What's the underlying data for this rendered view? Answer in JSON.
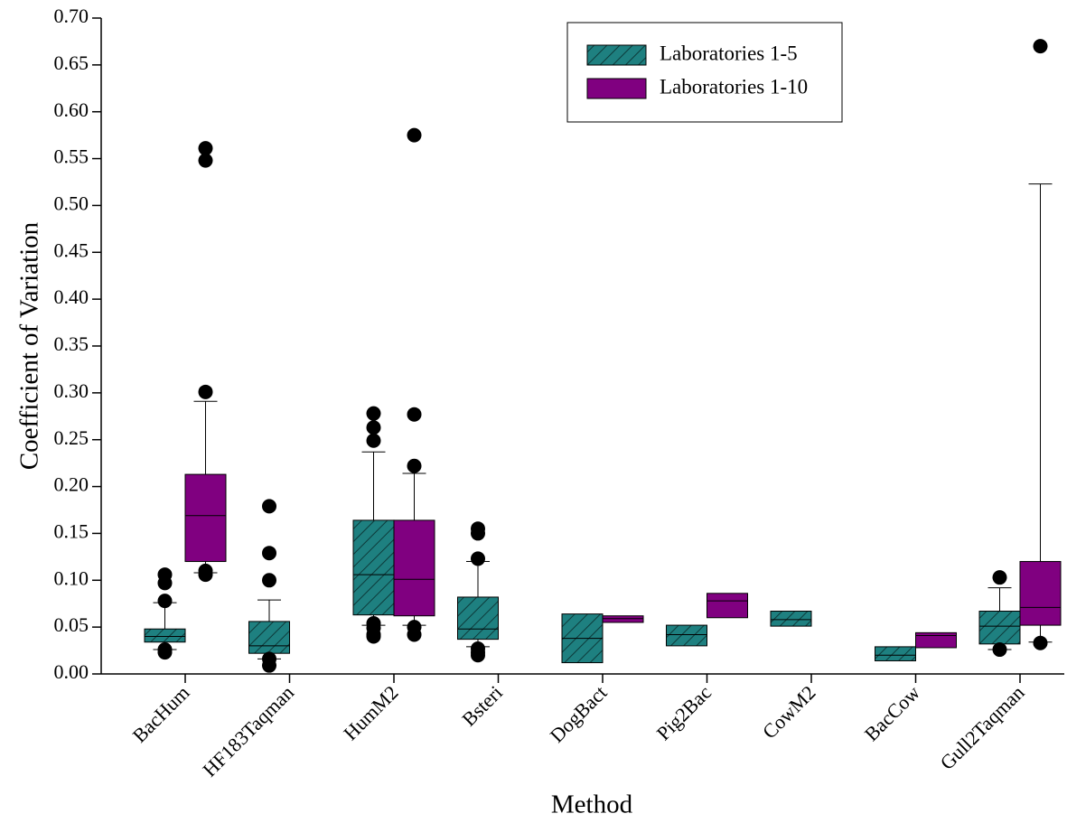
{
  "chart_data": {
    "type": "box",
    "xlabel": "Method",
    "ylabel": "Coefficient of Variation",
    "categories": [
      "BacHum",
      "HF183Taqman",
      "HumM2",
      "Bsteri",
      "DogBact",
      "Pig2Bac",
      "CowM2",
      "BacCow",
      "Gull2Taqman"
    ],
    "ylim": [
      0,
      0.7
    ],
    "yticks": [
      {
        "value": 0,
        "label": "0.00"
      },
      {
        "value": 0.05,
        "label": "0.05"
      },
      {
        "value": 0.1,
        "label": "0.10"
      },
      {
        "value": 0.15,
        "label": "0.15"
      },
      {
        "value": 0.2,
        "label": "0.20"
      },
      {
        "value": 0.25,
        "label": "0.25"
      },
      {
        "value": 0.3,
        "label": "0.30"
      },
      {
        "value": 0.35,
        "label": "0.35"
      },
      {
        "value": 0.4,
        "label": "0.40"
      },
      {
        "value": 0.45,
        "label": "0.45"
      },
      {
        "value": 0.5,
        "label": "0.50"
      },
      {
        "value": 0.55,
        "label": "0.55"
      },
      {
        "value": 0.6,
        "label": "0.60"
      },
      {
        "value": 0.65,
        "label": "0.65"
      },
      {
        "value": 0.7,
        "label": "0.70"
      }
    ],
    "legend": "upper right",
    "series": [
      {
        "name": "Laboratories 1-5",
        "color": "#1e8080",
        "hatch": true,
        "boxes": [
          {
            "min": 0.026,
            "q1": 0.034,
            "median": 0.04,
            "q3": 0.048,
            "max": 0.076,
            "outliers": [
              0.106,
              0.097,
              0.078,
              0.026,
              0.023
            ]
          },
          {
            "min": 0.016,
            "q1": 0.022,
            "median": 0.03,
            "q3": 0.056,
            "max": 0.079,
            "outliers": [
              0.179,
              0.129,
              0.1,
              0.016,
              0.009
            ]
          },
          {
            "min": 0.052,
            "q1": 0.063,
            "median": 0.106,
            "q3": 0.164,
            "max": 0.237,
            "outliers": [
              0.278,
              0.263,
              0.249,
              0.054,
              0.049,
              0.042,
              0.04
            ]
          },
          {
            "min": 0.029,
            "q1": 0.037,
            "median": 0.048,
            "q3": 0.082,
            "max": 0.12,
            "outliers": [
              0.155,
              0.15,
              0.123,
              0.027,
              0.023,
              0.02
            ]
          },
          {
            "min": null,
            "q1": 0.012,
            "median": 0.038,
            "q3": 0.064,
            "max": null,
            "outliers": []
          },
          {
            "min": null,
            "q1": 0.03,
            "median": 0.042,
            "q3": 0.052,
            "max": null,
            "outliers": []
          },
          {
            "min": null,
            "q1": 0.051,
            "median": 0.058,
            "q3": 0.067,
            "max": null,
            "outliers": []
          },
          {
            "min": null,
            "q1": 0.014,
            "median": 0.02,
            "q3": 0.029,
            "max": null,
            "outliers": []
          },
          {
            "min": 0.026,
            "q1": 0.032,
            "median": 0.051,
            "q3": 0.067,
            "max": 0.092,
            "outliers": [
              0.103,
              0.026
            ]
          }
        ]
      },
      {
        "name": "Laboratories 1-10",
        "color": "#800080",
        "hatch": false,
        "boxes": [
          {
            "min": 0.108,
            "q1": 0.12,
            "median": 0.169,
            "q3": 0.213,
            "max": 0.291,
            "outliers": [
              0.561,
              0.548,
              0.301,
              0.11,
              0.106
            ]
          },
          null,
          {
            "min": 0.052,
            "q1": 0.062,
            "median": 0.101,
            "q3": 0.164,
            "max": 0.214,
            "outliers": [
              0.575,
              0.277,
              0.222,
              0.05,
              0.042
            ]
          },
          null,
          {
            "min": null,
            "q1": 0.055,
            "median": 0.059,
            "q3": 0.062,
            "max": null,
            "outliers": []
          },
          {
            "min": null,
            "q1": 0.06,
            "median": 0.078,
            "q3": 0.086,
            "max": null,
            "outliers": []
          },
          null,
          {
            "min": null,
            "q1": 0.028,
            "median": 0.041,
            "q3": 0.044,
            "max": null,
            "outliers": []
          },
          {
            "min": 0.034,
            "q1": 0.052,
            "median": 0.071,
            "q3": 0.12,
            "max": 0.523,
            "outliers": [
              0.67,
              0.033
            ]
          }
        ]
      }
    ]
  }
}
